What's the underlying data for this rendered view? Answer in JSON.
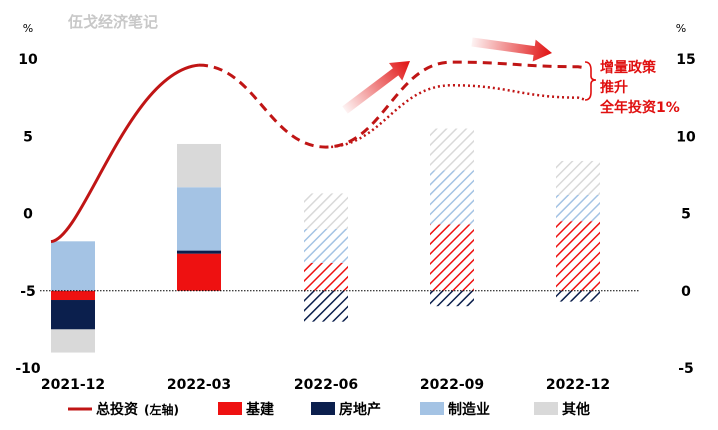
{
  "chart_data": {
    "type": "bar",
    "watermark": "伍戈经济笔记",
    "categories": [
      "2021-12",
      "2022-03",
      "2022-06",
      "2022-09",
      "2022-12"
    ],
    "left_axis": {
      "unit": "%",
      "ylim": [
        -10,
        10
      ],
      "ticks": [
        10,
        5,
        0,
        -5,
        -10
      ]
    },
    "right_axis": {
      "unit": "%",
      "ylim": [
        -5,
        15
      ],
      "ticks": [
        15,
        10,
        5,
        0,
        -5
      ]
    },
    "series": [
      {
        "name": "基建",
        "key": "infra",
        "color": "#ee1111",
        "values": [
          -0.6,
          2.4,
          1.8,
          4.3,
          4.5
        ]
      },
      {
        "name": "房地产",
        "key": "realestate",
        "color": "#0b1f4d",
        "values": [
          -1.9,
          0.2,
          -2.0,
          -1.0,
          -0.7
        ]
      },
      {
        "name": "制造业",
        "key": "manufacturing",
        "color": "#a4c3e4",
        "values": [
          3.2,
          4.1,
          2.2,
          3.5,
          1.7
        ]
      },
      {
        "name": "其他",
        "key": "other",
        "color": "#d9d9d9",
        "values": [
          -1.5,
          2.8,
          2.3,
          2.7,
          2.2
        ]
      }
    ],
    "line": {
      "name": "总投资",
      "suffix": "(左轴)",
      "color": "#c01515",
      "values": [
        -1.5,
        9.6,
        4.3,
        9.8,
        9.5
      ],
      "scenario_lower": [
        null,
        null,
        4.3,
        8.3,
        7.5
      ]
    },
    "forecast_from_index": 2,
    "annotation": {
      "lines": [
        "增量政策",
        "推升",
        "全年投资1%"
      ],
      "color": "#e01010"
    },
    "legend_placement": "bottom",
    "grid": false
  }
}
